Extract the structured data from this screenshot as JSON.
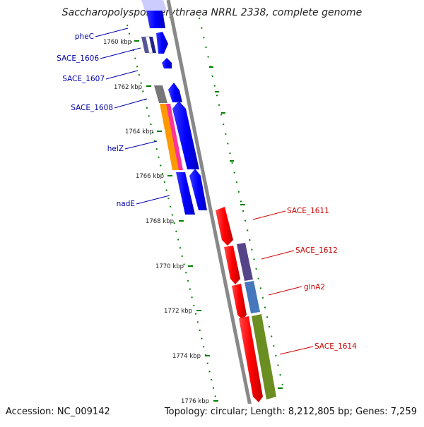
{
  "title": "Saccharopolyspora erythraea NRRL 2338, complete genome",
  "footer": {
    "accession": "Accession: NC_009142",
    "summary": "Topology: circular; Length: 8,212,805 bp; Genes: 7,259"
  },
  "scale": {
    "tick_labels": [
      "1760 kbp",
      "1762 kbp",
      "1764 kbp",
      "1766 kbp",
      "1768 kbp",
      "1770 kbp",
      "1772 kbp",
      "1774 kbp",
      "1776 kbp"
    ]
  },
  "labels_left": [
    "pheC",
    "SACE_1606",
    "SACE_1607",
    "SACE_1608",
    "helZ",
    "nadE"
  ],
  "labels_right": [
    "SACE_1611",
    "SACE_1612",
    "glnA2",
    "SACE_1614"
  ],
  "colors": {
    "forward_gene": "#0000ff",
    "reverse_gene": "#ff0000",
    "left_label": "#0000aa",
    "right_label": "#cc0000",
    "backbone": "#888888",
    "tick": "#008000"
  }
}
